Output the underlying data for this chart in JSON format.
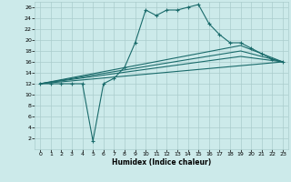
{
  "xlabel": "Humidex (Indice chaleur)",
  "bg_color": "#cceaea",
  "grid_color": "#aacccc",
  "line_color": "#1a6b6b",
  "xlim": [
    -0.5,
    23.5
  ],
  "ylim": [
    0,
    27
  ],
  "xticks": [
    0,
    1,
    2,
    3,
    4,
    5,
    6,
    7,
    8,
    9,
    10,
    11,
    12,
    13,
    14,
    15,
    16,
    17,
    18,
    19,
    20,
    21,
    22,
    23
  ],
  "yticks": [
    2,
    4,
    6,
    8,
    10,
    12,
    14,
    16,
    18,
    20,
    22,
    24,
    26
  ],
  "series1_x": [
    0,
    1,
    2,
    3,
    4,
    5,
    6,
    7,
    8,
    9,
    10,
    11,
    12,
    13,
    14,
    15,
    16,
    17,
    18,
    19,
    20,
    21,
    22,
    23
  ],
  "series1_y": [
    12,
    12,
    12,
    12,
    12,
    1.5,
    12,
    13,
    15,
    19.5,
    25.5,
    24.5,
    25.5,
    25.5,
    26,
    26.5,
    23,
    21,
    19.5,
    19.5,
    18.5,
    17.5,
    16.5,
    16
  ],
  "series2_x": [
    0,
    23
  ],
  "series2_y": [
    12,
    16
  ],
  "series3_x": [
    0,
    19,
    23
  ],
  "series3_y": [
    12,
    19,
    16
  ],
  "series4_x": [
    0,
    19,
    23
  ],
  "series4_y": [
    12,
    18,
    16
  ],
  "series5_x": [
    0,
    19,
    23
  ],
  "series5_y": [
    12,
    17,
    16
  ]
}
